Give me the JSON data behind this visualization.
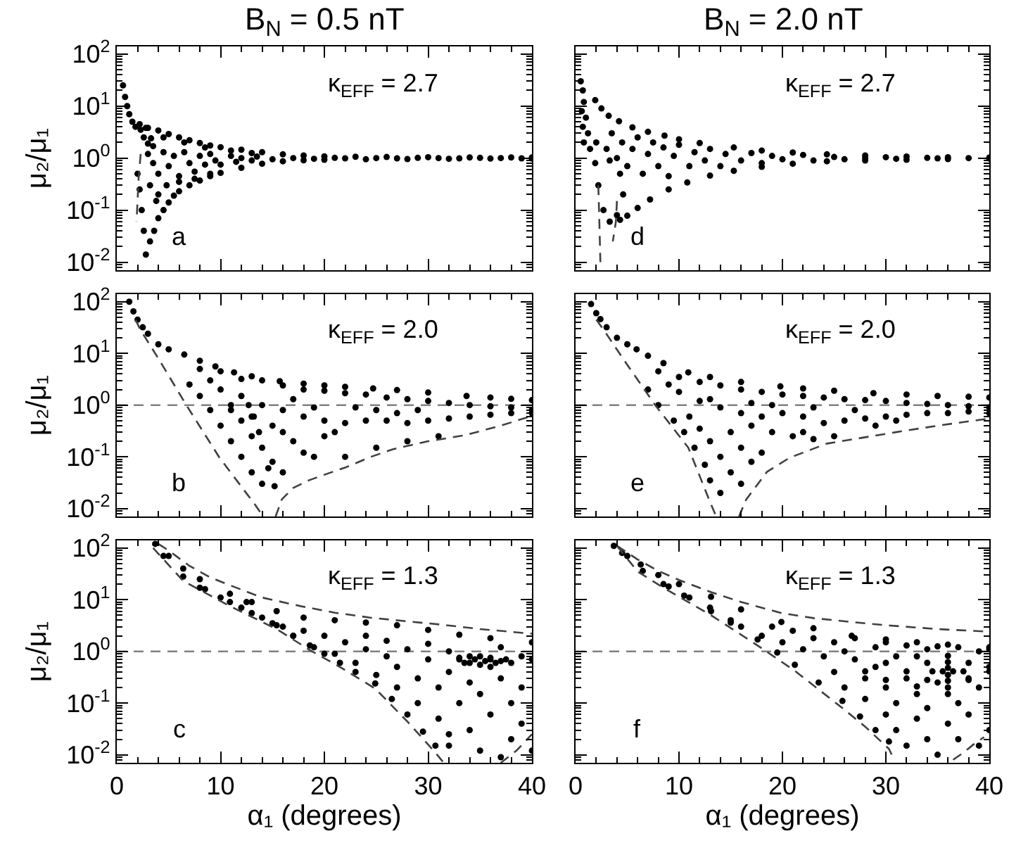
{
  "chart_data": [
    {
      "type": "scatter",
      "title": "B$_{N}$ = 0.5 nT",
      "ylabel": "μ₂/μ₁",
      "annotations": [
        "κ$_{EFF}$ = 2.7",
        "a"
      ],
      "xlim": [
        0,
        40
      ],
      "xticks": [
        0,
        10,
        20,
        30,
        40
      ],
      "ylim": [
        0.007,
        140
      ],
      "yticks": [
        {
          "value": 0.01,
          "label": "10$^{-2}$"
        },
        {
          "value": 0.1,
          "label": "10$^{-1}$"
        },
        {
          "value": 1,
          "label": "10$^{0}$"
        },
        {
          "value": 10,
          "label": "10$^{1}$"
        },
        {
          "value": 100,
          "label": "10$^{2}$"
        }
      ],
      "log": "y",
      "tick_labels": "y",
      "series": [
        {
          "marker": "circle",
          "color": "#000000",
          "x": [
            0.6,
            0.8,
            1.0,
            1.2,
            1.5,
            1.8,
            2.2,
            3,
            4,
            5,
            6,
            7,
            8,
            9,
            10,
            12,
            14,
            16,
            18,
            20,
            23,
            26,
            30,
            34,
            38,
            40,
            2.8,
            3.2,
            3.6,
            4,
            4.5,
            5,
            5.5,
            6,
            7,
            8,
            9,
            10,
            12,
            14,
            16,
            18,
            20,
            24,
            28,
            32,
            36,
            40,
            2.0,
            2.2,
            2.4,
            2.6,
            2.3,
            2.6,
            3.0,
            3.5,
            3.3,
            2.8,
            3,
            3.5,
            4,
            4.5,
            5,
            5.5,
            6,
            6.5,
            7,
            7.5,
            8,
            8.5,
            9,
            9.5,
            10,
            11,
            11.5,
            12,
            13,
            13.5,
            15,
            17,
            19,
            21,
            22,
            25,
            27,
            29,
            31,
            33,
            35,
            37,
            39,
            4.5,
            6.5,
            8.5,
            11,
            13,
            6,
            7.5,
            9,
            4,
            4.8,
            3.2,
            3.8
          ],
          "values": [
            25,
            15,
            10,
            7,
            5,
            4,
            4.5,
            3.8,
            3.4,
            2.9,
            2.5,
            2.2,
            1.95,
            1.75,
            1.62,
            1.45,
            1.3,
            1.18,
            1.12,
            1.08,
            1.06,
            1.05,
            1.04,
            1.03,
            1.03,
            1.03,
            0.014,
            0.025,
            0.04,
            0.07,
            0.1,
            0.14,
            0.19,
            0.23,
            0.3,
            0.37,
            0.45,
            0.52,
            0.65,
            0.78,
            0.87,
            0.91,
            0.93,
            0.95,
            0.96,
            0.97,
            0.98,
            0.98,
            0.5,
            0.25,
            0.1,
            0.04,
            3.5,
            2.5,
            1.9,
            1.7,
            2.4,
            3.8,
            1.2,
            0.8,
            0.5,
            1.3,
            0.7,
            1.1,
            0.45,
            1.3,
            0.8,
            0.55,
            1.1,
            0.75,
            1.2,
            0.9,
            0.75,
            1.1,
            0.85,
            1.0,
            0.9,
            1.07,
            0.95,
            1.0,
            0.97,
            1.01,
            0.99,
            1.0,
            0.99,
            1.01,
            1.0,
            0.99,
            1.01,
            1.0,
            0.99,
            2.5,
            2.0,
            1.6,
            1.4,
            1.25,
            0.35,
            0.4,
            0.5,
            0.2,
            0.3,
            0.3,
            0.15
          ]
        },
        {
          "type": "line",
          "marker": "none",
          "line_style": "dashed",
          "color": "#404040",
          "x": [
            2.3,
            2.1,
            2.0,
            1.9
          ],
          "values": [
            1.2,
            0.4,
            0.15,
            0.06
          ]
        }
      ]
    },
    {
      "type": "scatter",
      "title": "B$_{N}$ = 2.0 nT",
      "annotations": [
        "κ$_{EFF}$ = 2.7",
        "d"
      ],
      "xlim": [
        0,
        40
      ],
      "xticks": [
        0,
        10,
        20,
        30,
        40
      ],
      "ylim": [
        0.007,
        140
      ],
      "yticks": [
        {
          "value": 0.01,
          "label": null
        },
        {
          "value": 0.1,
          "label": null
        },
        {
          "value": 1,
          "label": null
        },
        {
          "value": 10,
          "label": null
        },
        {
          "value": 100,
          "label": null
        }
      ],
      "log": "y",
      "tick_labels": false,
      "series": [
        {
          "marker": "circle",
          "color": "#000000",
          "x": [
            0.5,
            0.7,
            0.8,
            0.6,
            1.0,
            0.7,
            1.2,
            0.8,
            1.4,
            1.9,
            2.5,
            3.2,
            4.2,
            5.5,
            7,
            8.6,
            10,
            12,
            15.3,
            18,
            21,
            24.3,
            28,
            32,
            36,
            40,
            40,
            36,
            32,
            28,
            24.3,
            21,
            18,
            15.3,
            13,
            10.8,
            9,
            7.2,
            6,
            5,
            4.3,
            1.9,
            2.2,
            2.7,
            3.3,
            4.0,
            4.6,
            4.3,
            3.3,
            2,
            3,
            3.5,
            4,
            4.5,
            5,
            5.5,
            6,
            6.5,
            7,
            7.5,
            8,
            8.5,
            9,
            9.5,
            10,
            11,
            11.5,
            12.5,
            13,
            14,
            14.5,
            16,
            17,
            18,
            19,
            20,
            22,
            23,
            25,
            26,
            28,
            30,
            31,
            34,
            35,
            38
          ],
          "values": [
            30,
            20,
            12,
            8,
            6,
            4,
            3,
            2,
            1.5,
            13,
            9,
            6.5,
            5.1,
            3.9,
            3.2,
            2.7,
            2.3,
            1.95,
            1.6,
            1.4,
            1.28,
            1.18,
            1.12,
            1.07,
            1.04,
            1.02,
            0.98,
            0.96,
            0.93,
            0.9,
            0.87,
            0.78,
            0.68,
            0.57,
            0.46,
            0.34,
            0.25,
            0.16,
            0.11,
            0.078,
            0.065,
            0.8,
            0.3,
            0.1,
            0.06,
            0.08,
            0.2,
            0.5,
            0.9,
            2,
            1.5,
            3,
            1,
            2,
            0.7,
            1.5,
            2.5,
            0.5,
            1.2,
            2,
            0.7,
            1.6,
            0.45,
            1.1,
            1.8,
            0.7,
            1.3,
            0.9,
            1.5,
            0.7,
            1.2,
            0.9,
            1.25,
            0.8,
            1.1,
            0.95,
            1.15,
            0.9,
            1.05,
            0.95,
            1.0,
            1.04,
            0.97,
            1.01,
            0.99,
            1.0
          ]
        },
        {
          "type": "line",
          "marker": "none",
          "line_style": "dashed",
          "color": "#404040",
          "x": [
            2.2,
            2.3,
            2.4
          ],
          "values": [
            0.3,
            0.06,
            0.01
          ]
        },
        {
          "type": "line",
          "marker": "none",
          "line_style": "dashed",
          "color": "#404040",
          "x": [
            4.0,
            3.9,
            3.6
          ],
          "values": [
            0.15,
            0.06,
            0.025
          ]
        }
      ]
    },
    {
      "type": "scatter",
      "ylabel": "μ₂/μ₁",
      "annotations": [
        "κ$_{EFF}$ = 2.0",
        "b"
      ],
      "xlim": [
        0,
        40
      ],
      "xticks": [
        0,
        10,
        20,
        30,
        40
      ],
      "ylim": [
        0.007,
        140
      ],
      "yticks": [
        {
          "value": 0.01,
          "label": "10$^{-2}$"
        },
        {
          "value": 0.1,
          "label": "10$^{-1}$"
        },
        {
          "value": 1,
          "label": "10$^{0}$"
        },
        {
          "value": 10,
          "label": "10$^{1}$"
        },
        {
          "value": 100,
          "label": "10$^{2}$"
        }
      ],
      "log": "y",
      "tick_labels": "y",
      "ref_lines": [
        {
          "axis": "y",
          "value": 1,
          "color": "#808080",
          "line_style": "dashed"
        }
      ],
      "series": [
        {
          "marker": "circle",
          "color": "#000000",
          "x": [
            1.2,
            1.6,
            2,
            2.5,
            3,
            4,
            5,
            6.5,
            8,
            9.5,
            11.3,
            13,
            15.7,
            18,
            20,
            22,
            24.7,
            27,
            30,
            33.7,
            36,
            38,
            40,
            8,
            10,
            12,
            14,
            16,
            18,
            20,
            22,
            24,
            26,
            28,
            30,
            32,
            34,
            36,
            38,
            40,
            10,
            12,
            14,
            16,
            18,
            20,
            22,
            24,
            26,
            28,
            30,
            32,
            34,
            36,
            38,
            40,
            7,
            8,
            9,
            10,
            11,
            12,
            13,
            14,
            11,
            12,
            13,
            14,
            15,
            16,
            15,
            17,
            18,
            19,
            13,
            16,
            20,
            21,
            9,
            11,
            17,
            19,
            23,
            25,
            27,
            29,
            12.7,
            13.2,
            13.7,
            14.6,
            15.2,
            22,
            25,
            28,
            31
          ],
          "values": [
            100,
            65,
            45,
            32,
            24,
            15,
            12,
            9.5,
            7.2,
            5.6,
            4.3,
            3.6,
            2.9,
            2.6,
            2.4,
            2.25,
            2.1,
            1.95,
            1.75,
            1.5,
            1.4,
            1.32,
            1.25,
            5,
            4.5,
            3.2,
            3.0,
            2.4,
            2.0,
            1.9,
            1.7,
            1.6,
            1.4,
            1.3,
            1.2,
            1.1,
            1.0,
            0.95,
            0.9,
            0.8,
            2,
            1.5,
            1.0,
            0.8,
            0.6,
            0.5,
            0.45,
            0.5,
            0.5,
            0.45,
            0.5,
            0.55,
            0.6,
            0.65,
            0.7,
            0.7,
            2.5,
            1.5,
            0.8,
            0.4,
            0.2,
            0.1,
            0.05,
            0.03,
            0.8,
            0.5,
            0.25,
            0.15,
            0.08,
            0.05,
            0.4,
            0.2,
            0.12,
            0.1,
            0.6,
            0.3,
            0.25,
            0.3,
            3,
            1,
            1.3,
            0.9,
            0.9,
            0.8,
            0.7,
            0.8,
            1.0,
            0.6,
            0.3,
            0.06,
            0.027,
            0.1,
            0.15,
            0.2,
            0.25
          ]
        },
        {
          "type": "line",
          "marker": "none",
          "line_style": "dashed",
          "color": "#404040",
          "x": [
            1.8,
            2.3,
            4,
            6.7,
            9.9,
            13.3,
            14.0
          ],
          "values": [
            45,
            28,
            8,
            1,
            0.096,
            0.012,
            0.0075
          ]
        },
        {
          "type": "line",
          "marker": "none",
          "line_style": "dashed",
          "color": "#404040",
          "x": [
            15.3,
            15.9,
            17,
            18.5,
            20,
            22.1,
            24.5,
            26.6,
            30,
            33.5,
            37,
            40
          ],
          "values": [
            0.007,
            0.015,
            0.025,
            0.035,
            0.045,
            0.063,
            0.1,
            0.14,
            0.2,
            0.26,
            0.4,
            0.62
          ]
        }
      ]
    },
    {
      "type": "scatter",
      "annotations": [
        "κ$_{EFF}$ = 2.0",
        "e"
      ],
      "xlim": [
        0,
        40
      ],
      "xticks": [
        0,
        10,
        20,
        30,
        40
      ],
      "ylim": [
        0.007,
        140
      ],
      "yticks": [
        {
          "value": 0.01,
          "label": null
        },
        {
          "value": 0.1,
          "label": null
        },
        {
          "value": 1,
          "label": null
        },
        {
          "value": 10,
          "label": null
        },
        {
          "value": 100,
          "label": null
        }
      ],
      "log": "y",
      "tick_labels": false,
      "ref_lines": [
        {
          "axis": "y",
          "value": 1,
          "color": "#808080",
          "line_style": "dashed"
        }
      ],
      "series": [
        {
          "marker": "circle",
          "color": "#000000",
          "x": [
            1.5,
            2,
            2.4,
            3,
            4,
            5,
            5.9,
            7,
            8.5,
            10.9,
            13,
            16,
            19.8,
            22,
            25,
            28.8,
            32,
            35,
            38,
            40,
            8,
            10,
            12,
            14,
            16,
            18,
            20,
            22,
            24,
            26,
            28,
            30,
            32,
            34,
            36,
            38,
            40,
            10,
            12,
            14,
            16,
            18,
            20,
            22,
            24,
            26,
            28,
            30,
            32,
            34,
            36,
            38,
            40,
            7,
            8,
            9.5,
            10.5,
            11.5,
            12.5,
            13,
            14,
            11,
            12,
            13,
            14,
            15,
            16,
            15,
            16,
            17,
            18,
            17,
            19,
            21,
            22,
            23,
            25,
            9,
            13,
            17,
            19,
            23,
            27,
            29,
            31
          ],
          "values": [
            90,
            60,
            46,
            32,
            20,
            15,
            12,
            9,
            6.5,
            4.3,
            3.5,
            2.8,
            2.3,
            2.1,
            1.9,
            1.7,
            1.6,
            1.5,
            1.45,
            1.4,
            4.5,
            3.5,
            2.8,
            2.4,
            2.0,
            1.8,
            1.6,
            1.5,
            1.4,
            1.3,
            1.25,
            1.2,
            1.1,
            1.05,
            1.0,
            0.95,
            0.9,
            1.8,
            1.2,
            0.9,
            0.7,
            0.6,
            0.7,
            0.6,
            0.45,
            0.5,
            0.55,
            0.6,
            0.65,
            0.7,
            0.7,
            0.75,
            0.7,
            2,
            1,
            0.5,
            0.3,
            0.15,
            0.07,
            0.035,
            0.02,
            0.6,
            0.35,
            0.2,
            0.1,
            0.05,
            0.03,
            0.3,
            0.15,
            0.08,
            0.12,
            0.4,
            0.3,
            0.25,
            0.3,
            0.22,
            0.25,
            2.5,
            1.3,
            1.1,
            1.0,
            0.9,
            0.8,
            0.4,
            0.5
          ]
        },
        {
          "type": "line",
          "marker": "none",
          "line_style": "dashed",
          "color": "#404040",
          "x": [
            2.0,
            2.8,
            5,
            7.7,
            10.9,
            13.1,
            13.6
          ],
          "values": [
            45,
            27,
            6,
            1,
            0.15,
            0.012,
            0.007
          ]
        },
        {
          "type": "line",
          "marker": "none",
          "line_style": "dashed",
          "color": "#404040",
          "x": [
            15.8,
            16.5,
            18.5,
            20.7,
            24.3,
            31,
            35,
            40
          ],
          "values": [
            0.007,
            0.015,
            0.051,
            0.096,
            0.18,
            0.3,
            0.4,
            0.55
          ]
        }
      ]
    },
    {
      "type": "scatter",
      "ylabel": "μ₂/μ₁",
      "xlabel": "α₁ (degrees)",
      "annotations": [
        "κ$_{EFF}$ = 1.3",
        "c"
      ],
      "xlim": [
        0,
        40
      ],
      "xticks": [
        0,
        10,
        20,
        30,
        40
      ],
      "ylim": [
        0.007,
        140
      ],
      "yticks": [
        {
          "value": 0.01,
          "label": "10$^{-2}$"
        },
        {
          "value": 0.1,
          "label": "10$^{-1}$"
        },
        {
          "value": 1,
          "label": "10$^{0}$"
        },
        {
          "value": 10,
          "label": "10$^{1}$"
        },
        {
          "value": 100,
          "label": "10$^{2}$"
        }
      ],
      "log": "y",
      "ref_lines": [
        {
          "axis": "y",
          "value": 1,
          "color": "#808080",
          "line_style": "dashed"
        }
      ],
      "series": [
        {
          "marker": "circle",
          "color": "#000000",
          "x": [
            3.7,
            5,
            6.4,
            8,
            10.9,
            13,
            15.4,
            18,
            21,
            24,
            27,
            30,
            33,
            36,
            40,
            4.5,
            6.4,
            8.5,
            10.9,
            13,
            15.4,
            17,
            18.6,
            20,
            21.5,
            23,
            24.9,
            26.5,
            28,
            29.5,
            30.7,
            8,
            10,
            12,
            12.5,
            14,
            15,
            16,
            17,
            18,
            19,
            20,
            21,
            22,
            23,
            24,
            24,
            25,
            26,
            26,
            27,
            27,
            28,
            29,
            29,
            30,
            30,
            31,
            31,
            32,
            32,
            33,
            33,
            34,
            34,
            34,
            35,
            35,
            35,
            36,
            36,
            36,
            37,
            37,
            37,
            38,
            38,
            38,
            39,
            39,
            39,
            40,
            40,
            32,
            32,
            37,
            33,
            33.5,
            34.5,
            35.5,
            36.5,
            37.5,
            35,
            36,
            34
          ],
          "values": [
            120,
            70,
            40,
            25,
            13,
            9,
            6,
            4.5,
            4,
            3.6,
            3.2,
            2.6,
            2.1,
            1.8,
            1.5,
            70,
            28,
            16,
            9,
            5.5,
            3.2,
            2.0,
            1.3,
            0.9,
            0.6,
            0.4,
            0.24,
            0.12,
            0.06,
            0.028,
            0.015,
            17,
            11,
            7,
            9,
            4.5,
            3.5,
            3,
            2.0,
            2.5,
            1.2,
            2.0,
            0.9,
            1.5,
            0.6,
            1.1,
            2,
            0.35,
            0.8,
            1.6,
            0.2,
            0.5,
            1.1,
            0.1,
            0.3,
            0.7,
            1.4,
            0.05,
            0.2,
            0.4,
            1.0,
            0.1,
            0.7,
            0.03,
            0.25,
            0.6,
            0.8,
            0.15,
            0.012,
            0.5,
            0.7,
            0.06,
            0.65,
            1.2,
            0.3,
            0.02,
            0.1,
            0.6,
            0.8,
            0.04,
            0.2,
            0.7,
            0.012,
            0.025,
            0.015,
            0.009,
            0.75,
            0.6,
            0.7,
            0.65,
            0.6,
            0.7,
            0.55,
            0.75,
            0.8
          ]
        },
        {
          "type": "line",
          "marker": "none",
          "line_style": "dashed",
          "color": "#404040",
          "x": [
            4,
            5,
            7,
            9,
            10.9,
            14,
            17.7,
            21,
            24.4,
            28,
            31.2,
            35,
            40
          ],
          "values": [
            120,
            89,
            45,
            27,
            19,
            11,
            7.5,
            5.6,
            4.5,
            3.8,
            3.3,
            2.7,
            2.2
          ]
        },
        {
          "type": "line",
          "marker": "none",
          "line_style": "dashed",
          "color": "#404040",
          "x": [
            3.5,
            6.4,
            10.9,
            15.4,
            18.6,
            21.5,
            24.9,
            28,
            30.7,
            31.5
          ],
          "values": [
            100,
            23,
            7.5,
            2.7,
            1.06,
            0.5,
            0.19,
            0.044,
            0.011,
            0.007
          ]
        },
        {
          "type": "line",
          "marker": "none",
          "line_style": "dashed",
          "color": "#404040",
          "x": [
            37,
            38.5,
            40
          ],
          "values": [
            0.007,
            0.012,
            0.025
          ]
        }
      ]
    },
    {
      "type": "scatter",
      "xlabel": "α₁ (degrees)",
      "annotations": [
        "κ$_{EFF}$ = 1.3",
        "f"
      ],
      "xlim": [
        0,
        40
      ],
      "xticks": [
        0,
        10,
        20,
        30,
        40
      ],
      "ylim": [
        0.007,
        140
      ],
      "yticks": [
        {
          "value": 0.01,
          "label": null
        },
        {
          "value": 0.1,
          "label": null
        },
        {
          "value": 1,
          "label": null
        },
        {
          "value": 10,
          "label": null
        },
        {
          "value": 100,
          "label": null
        }
      ],
      "log": "y",
      "tick_labels": "x",
      "ref_lines": [
        {
          "axis": "y",
          "value": 1,
          "color": "#808080",
          "line_style": "dashed"
        }
      ],
      "series": [
        {
          "marker": "circle",
          "color": "#000000",
          "x": [
            3.7,
            4.5,
            6.3,
            8,
            10,
            13.1,
            16,
            19.9,
            23,
            26.7,
            30,
            33,
            36,
            40,
            5,
            6.5,
            8.5,
            10.5,
            13.1,
            15,
            17.6,
            19.5,
            21.2,
            23.5,
            25.8,
            27.5,
            29,
            30.3,
            9,
            11,
            13,
            15,
            16,
            18,
            19,
            20,
            21,
            22,
            23,
            24,
            25,
            25,
            26,
            26,
            27,
            27,
            28,
            28,
            29,
            29,
            30,
            30,
            30,
            31,
            31,
            31,
            32,
            32,
            32,
            33,
            33,
            34,
            34,
            34,
            35,
            35,
            35,
            36,
            36,
            37,
            37,
            37,
            38,
            38,
            39,
            39,
            39,
            40,
            40,
            40,
            34.5,
            37.5,
            36,
            36,
            32,
            40,
            34,
            38,
            34,
            38,
            36,
            36,
            28,
            30,
            30,
            33,
            33,
            36,
            36,
            35.5,
            36.5
          ],
          "values": [
            110,
            80,
            48,
            30,
            20,
            11.4,
            6.5,
            3.7,
            2.8,
            2.0,
            1.7,
            1.5,
            1.35,
            1.2,
            70,
            36,
            20,
            12,
            6,
            3.6,
            1.7,
            0.95,
            0.55,
            0.25,
            0.11,
            0.055,
            0.03,
            0.018,
            18,
            11,
            7,
            4,
            3,
            2,
            3,
            1.5,
            2.5,
            1.1,
            1.8,
            0.8,
            1.5,
            0.4,
            1.0,
            0.2,
            0.7,
            1.8,
            0.3,
            0.12,
            0.5,
            1.2,
            0.06,
            0.2,
            1.5,
            0.8,
            0.03,
            0.1,
            0.3,
            1.3,
            0.015,
            0.05,
            0.15,
            1.1,
            0.02,
            0.08,
            0.25,
            1.25,
            0.01,
            0.04,
            0.15,
            0.02,
            1.2,
            0.1,
            0.06,
            0.3,
            0.015,
            0.2,
            1.0,
            0.03,
            0.5,
            1.1,
            0.41,
            0.41,
            0.48,
            0.35,
            0.41,
            0.41,
            0.6,
            0.6,
            0.28,
            0.28,
            0.62,
            0.27,
            0.41,
            0.6,
            0.28,
            0.8,
            0.21,
            0.82,
            0.2,
            0.41,
            0.41
          ]
        },
        {
          "type": "line",
          "marker": "none",
          "line_style": "dashed",
          "color": "#404040",
          "x": [
            4,
            6,
            8,
            10,
            13.1,
            16,
            19.9,
            23,
            26.7,
            30,
            35,
            40
          ],
          "values": [
            110,
            60,
            36,
            24,
            14,
            9,
            5.5,
            4.4,
            3.7,
            3.2,
            2.7,
            2.4
          ]
        },
        {
          "type": "line",
          "marker": "none",
          "line_style": "dashed",
          "color": "#404040",
          "x": [
            4,
            6,
            8.5,
            13.1,
            17.6,
            21.2,
            25.8,
            28,
            30.3,
            30.8
          ],
          "values": [
            110,
            35,
            17,
            5,
            1.3,
            0.42,
            0.08,
            0.035,
            0.013,
            0.008
          ]
        },
        {
          "type": "line",
          "marker": "none",
          "line_style": "dashed",
          "color": "#404040",
          "x": [
            36.5,
            37.5,
            38.5,
            39.5
          ],
          "values": [
            0.008,
            0.011,
            0.016,
            0.022
          ]
        }
      ]
    }
  ]
}
